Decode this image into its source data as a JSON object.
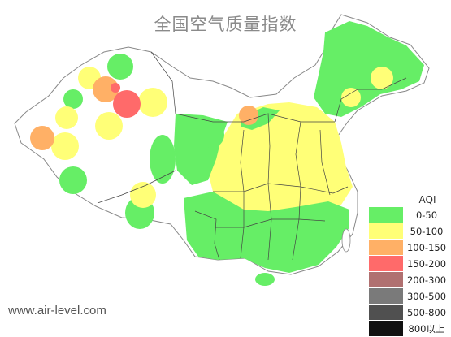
{
  "title": "全国空气质量指数",
  "watermark": "www.air-level.com",
  "legend": {
    "title": "AQI",
    "items": [
      {
        "label": "0-50",
        "color": "#66ee66"
      },
      {
        "label": "50-100",
        "color": "#ffff77"
      },
      {
        "label": "100-150",
        "color": "#ffb066"
      },
      {
        "label": "150-200",
        "color": "#ff6a6a"
      },
      {
        "label": "200-300",
        "color": "#b07070"
      },
      {
        "label": "300-500",
        "color": "#7a7a7a"
      },
      {
        "label": "500-800",
        "color": "#505050"
      },
      {
        "label": "800以上",
        "color": "#111111"
      }
    ]
  }
}
